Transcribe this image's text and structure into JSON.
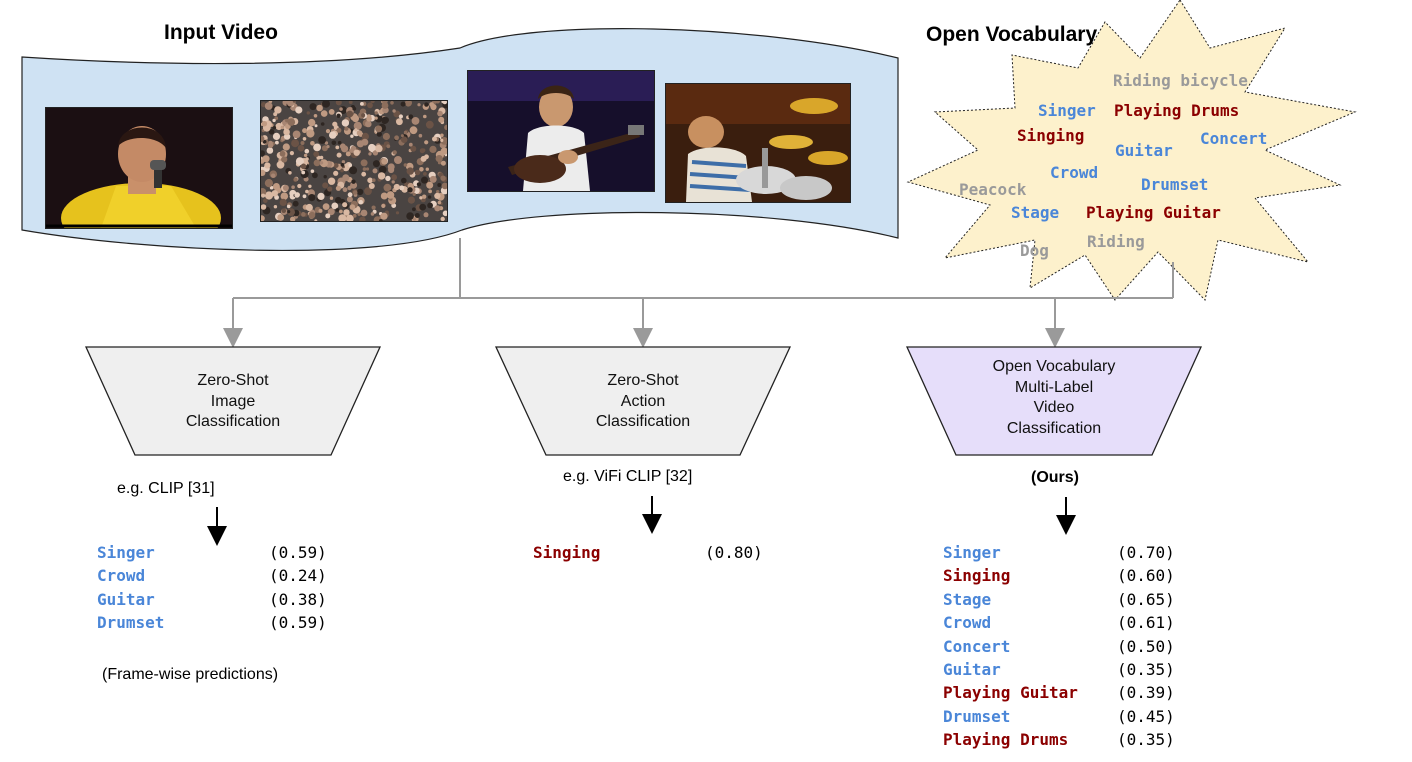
{
  "titles": {
    "input_video": "Input Video",
    "open_vocabulary": "Open Vocabulary"
  },
  "colors": {
    "noun": "#4a86d8",
    "action": "#8b0000",
    "distractor": "#9a9a9a",
    "banner_fill": "#cfe2f3",
    "burst_fill": "#fdf1cc",
    "ours_fill": "#e6defa",
    "baseline_fill": "#efefef"
  },
  "frames": [
    {
      "name": "singer-frame",
      "subject": "singer in yellow jacket with microphone"
    },
    {
      "name": "crowd-frame",
      "subject": "large concert crowd"
    },
    {
      "name": "guitarist-frame",
      "subject": "guitarist playing bass"
    },
    {
      "name": "drummer-frame",
      "subject": "drummer behind drum kit"
    }
  ],
  "vocabulary": [
    {
      "text": "Riding bicycle",
      "kind": "distractor"
    },
    {
      "text": "Singer",
      "kind": "noun"
    },
    {
      "text": "Playing Drums",
      "kind": "action"
    },
    {
      "text": "Singing",
      "kind": "action"
    },
    {
      "text": "Concert",
      "kind": "noun"
    },
    {
      "text": "Guitar",
      "kind": "noun"
    },
    {
      "text": "Crowd",
      "kind": "noun"
    },
    {
      "text": "Peacock",
      "kind": "distractor"
    },
    {
      "text": "Drumset",
      "kind": "noun"
    },
    {
      "text": "Stage",
      "kind": "noun"
    },
    {
      "text": "Playing Guitar",
      "kind": "action"
    },
    {
      "text": "Riding",
      "kind": "distractor"
    },
    {
      "text": "Dog",
      "kind": "distractor"
    }
  ],
  "methods": [
    {
      "label_lines": [
        "Zero-Shot",
        "Image",
        "Classification"
      ],
      "example": "e.g. CLIP [31]",
      "note": "(Frame-wise predictions)",
      "predictions": [
        {
          "label": "Singer",
          "score": "(0.59)",
          "kind": "noun"
        },
        {
          "label": "Crowd",
          "score": "(0.24)",
          "kind": "noun"
        },
        {
          "label": "Guitar",
          "score": "(0.38)",
          "kind": "noun"
        },
        {
          "label": "Drumset",
          "score": "(0.59)",
          "kind": "noun"
        }
      ]
    },
    {
      "label_lines": [
        "Zero-Shot",
        "Action",
        "Classification"
      ],
      "example": "e.g. ViFi CLIP [32]",
      "predictions": [
        {
          "label": "Singing",
          "score": "(0.80)",
          "kind": "action"
        }
      ]
    },
    {
      "label_lines": [
        "Open Vocabulary",
        "Multi-Label",
        "Video",
        "Classification"
      ],
      "example": "(Ours)",
      "predictions": [
        {
          "label": "Singer",
          "score": "(0.70)",
          "kind": "noun"
        },
        {
          "label": "Singing",
          "score": "(0.60)",
          "kind": "action"
        },
        {
          "label": "Stage",
          "score": "(0.65)",
          "kind": "noun"
        },
        {
          "label": "Crowd",
          "score": "(0.61)",
          "kind": "noun"
        },
        {
          "label": "Concert",
          "score": "(0.50)",
          "kind": "noun"
        },
        {
          "label": "Guitar",
          "score": "(0.35)",
          "kind": "noun"
        },
        {
          "label": "Playing Guitar",
          "score": "(0.39)",
          "kind": "action"
        },
        {
          "label": "Drumset",
          "score": "(0.45)",
          "kind": "noun"
        },
        {
          "label": "Playing Drums",
          "score": "(0.35)",
          "kind": "action"
        }
      ]
    }
  ]
}
